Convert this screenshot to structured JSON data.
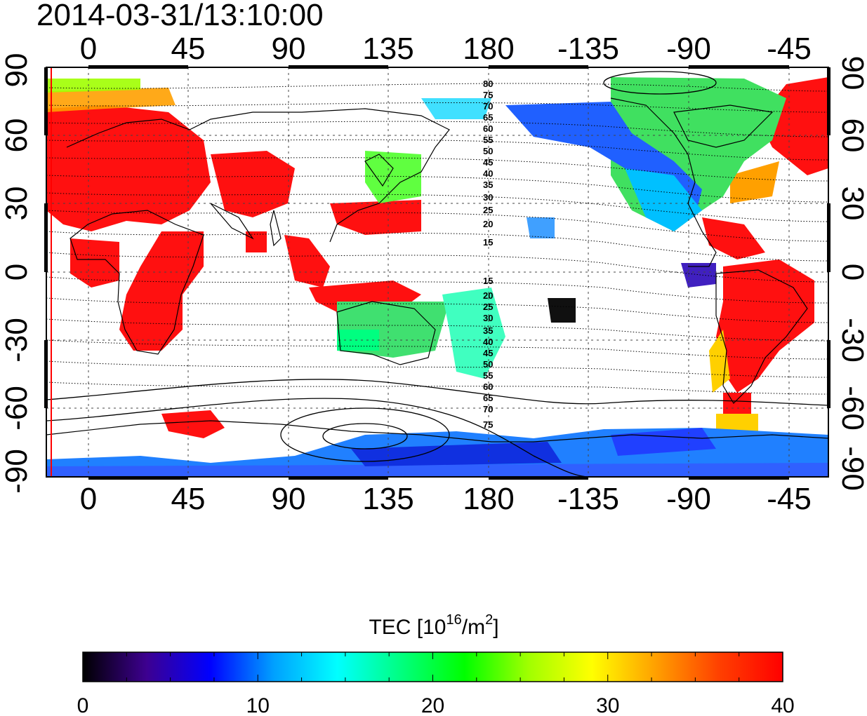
{
  "map": {
    "timestamp": "2014-03-31/13:10:00",
    "lon_ticks_top": [
      "0",
      "45",
      "90",
      "135",
      "180",
      "-135",
      "-90",
      "-45"
    ],
    "lon_ticks_bottom": [
      "0",
      "45",
      "90",
      "135",
      "180",
      "-135",
      "-90",
      "-45"
    ],
    "lat_ticks_left": [
      "90",
      "60",
      "30",
      "0",
      "-30",
      "-60",
      "-90"
    ],
    "lat_ticks_right": [
      "90",
      "60",
      "30",
      "0",
      "-30",
      "-60",
      "-90"
    ],
    "contour_labels_north": [
      "80",
      "75",
      "70",
      "65",
      "60",
      "55",
      "50",
      "45",
      "40",
      "35",
      "30",
      "25",
      "20",
      "15"
    ],
    "contour_labels_south": [
      "15",
      "20",
      "25",
      "30",
      "35",
      "40",
      "45",
      "50",
      "55",
      "60",
      "65",
      "70",
      "75"
    ],
    "colorbar": {
      "title_main": "TEC  [10",
      "title_exp1": "16",
      "title_mid": "/m",
      "title_exp2": "2",
      "title_end": "]",
      "min": 0,
      "max": 40,
      "ticks": [
        "0",
        "10",
        "20",
        "30",
        "40"
      ],
      "colors": [
        "#000000",
        "#3d0090",
        "#0000ff",
        "#00a0ff",
        "#00ffff",
        "#00ff80",
        "#00ff00",
        "#a0ff00",
        "#ffff00",
        "#ffa000",
        "#ff4000",
        "#ff0000"
      ]
    }
  }
}
